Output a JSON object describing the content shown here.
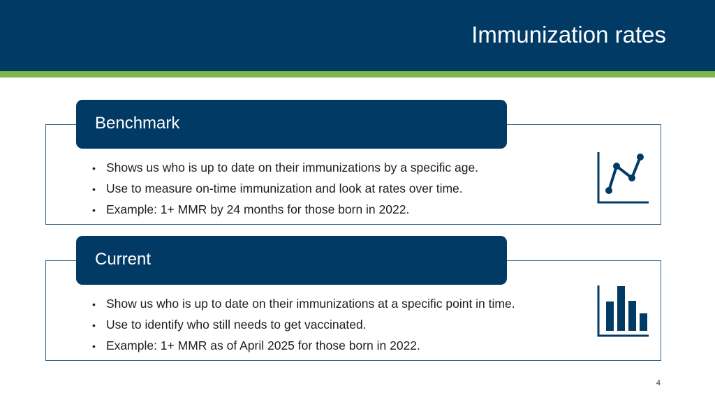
{
  "header": {
    "title": "Immunization rates"
  },
  "sections": [
    {
      "heading": "Benchmark",
      "bullets": [
        "Shows us who is up to date on their immunizations by a specific age.",
        "Use to measure on-time immunization and look at rates over time.",
        "Example: 1+ MMR by 24 months for those born in 2022."
      ],
      "icon": "line-chart-icon"
    },
    {
      "heading": "Current",
      "bullets": [
        "Show us who is up to date on their immunizations at a specific point in time.",
        "Use to identify who still needs to get vaccinated.",
        "Example: 1+ MMR as of April 2025 for those born in 2022."
      ],
      "icon": "bar-chart-icon"
    }
  ],
  "page_number": "4",
  "colors": {
    "primary": "#023a66",
    "accent": "#7ab648"
  }
}
